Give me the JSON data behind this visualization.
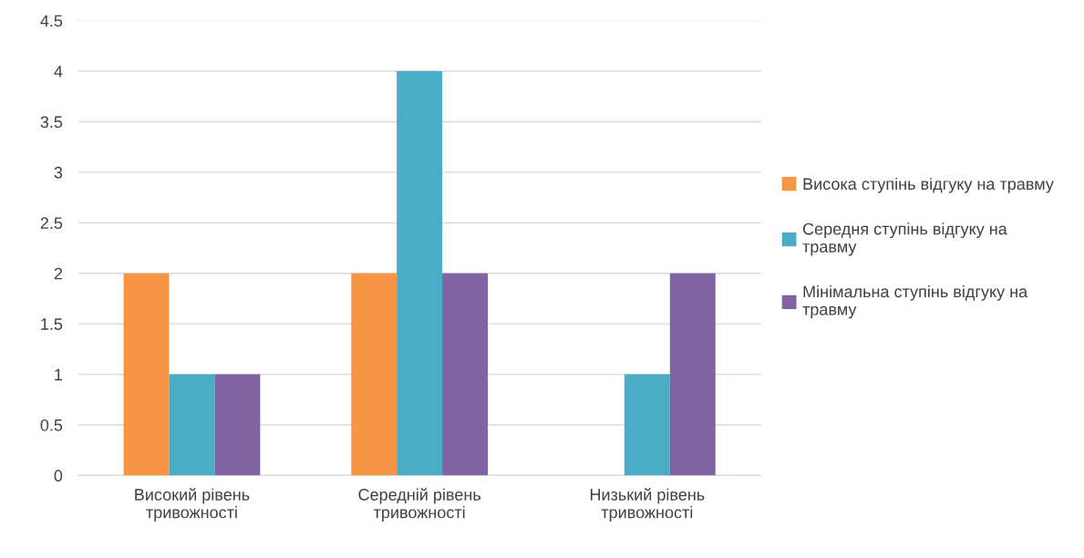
{
  "chart_data": {
    "type": "bar",
    "categories": [
      "Високий рівень тривожності",
      "Середній рівень тривожності",
      "Низький рівень тривожності"
    ],
    "series": [
      {
        "name": "Висока ступінь відгуку на травму",
        "color": "#f79646",
        "values": [
          2,
          2,
          0
        ]
      },
      {
        "name": "Середня ступінь відгуку на травму",
        "color": "#4bacc6",
        "values": [
          1,
          4,
          1
        ]
      },
      {
        "name": "Мінімальна ступінь відгуку на травму",
        "color": "#8064a2",
        "values": [
          1,
          2,
          2
        ]
      }
    ],
    "ylim": [
      0,
      4.5
    ],
    "yticks": [
      0,
      0.5,
      1,
      1.5,
      2,
      2.5,
      3,
      3.5,
      4,
      4.5
    ],
    "grid": "y",
    "legend": "right"
  }
}
